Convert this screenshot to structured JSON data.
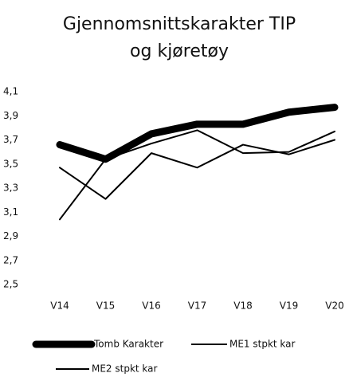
{
  "chart_data": {
    "type": "line",
    "title": "Gjennomsnittskarakter TIP og kjøretøy",
    "categories": [
      "V14",
      "V15",
      "V16",
      "V17",
      "V18",
      "V19",
      "V20"
    ],
    "series": [
      {
        "name": "Tomb Karakter",
        "color": "#000000",
        "values": [
          3.66,
          3.54,
          3.75,
          3.83,
          3.83,
          3.93,
          3.97
        ]
      },
      {
        "name": "ME1 stpkt kar",
        "color": "#000000",
        "values": [
          3.47,
          3.21,
          3.59,
          3.47,
          3.66,
          3.58,
          3.7
        ]
      },
      {
        "name": "ME2 stpkt kar",
        "color": "#000000",
        "values": [
          3.04,
          3.54,
          3.67,
          3.78,
          3.59,
          3.6,
          3.77
        ]
      }
    ],
    "ylim": [
      2.5,
      4.1
    ],
    "yticks": [
      {
        "value": 2.5,
        "label": "2,5"
      },
      {
        "value": 2.7,
        "label": "2,7"
      },
      {
        "value": 2.9,
        "label": "2,9"
      },
      {
        "value": 3.1,
        "label": "3,1"
      },
      {
        "value": 3.3,
        "label": "3,3"
      },
      {
        "value": 3.5,
        "label": "3,5"
      },
      {
        "value": 3.7,
        "label": "3,7"
      },
      {
        "value": 3.9,
        "label": "3,9"
      },
      {
        "value": 4.1,
        "label": "4,1"
      }
    ],
    "grid": false,
    "legend": "bottom"
  }
}
